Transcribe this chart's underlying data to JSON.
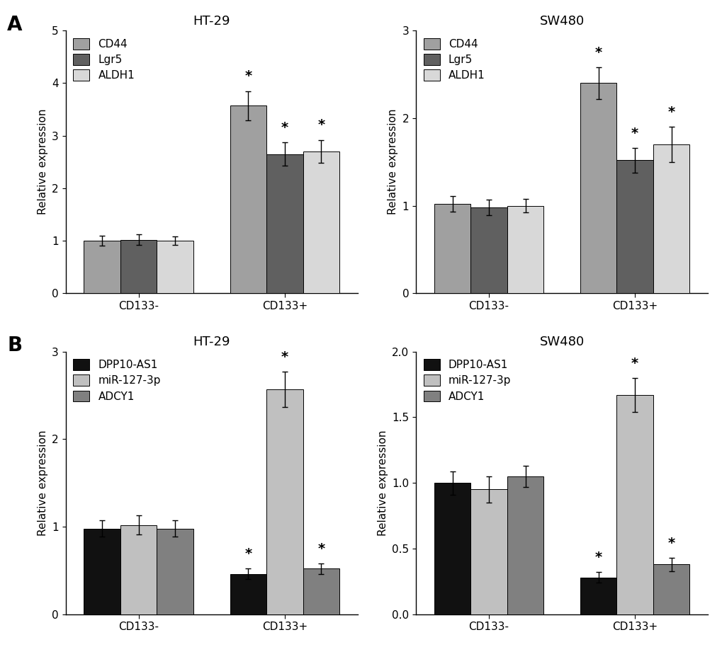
{
  "panel_A_HT29": {
    "title": "HT-29",
    "ylabel": "Relative expression",
    "ylim": [
      0,
      5
    ],
    "yticks": [
      0,
      1,
      2,
      3,
      4,
      5
    ],
    "groups": [
      "CD133-",
      "CD133+"
    ],
    "legend_labels": [
      "CD44",
      "Lgr5",
      "ALDH1"
    ],
    "colors": [
      "#a0a0a0",
      "#606060",
      "#d8d8d8"
    ],
    "values": [
      [
        1.0,
        1.02,
        1.0
      ],
      [
        3.57,
        2.65,
        2.7
      ]
    ],
    "errors": [
      [
        0.09,
        0.1,
        0.08
      ],
      [
        0.28,
        0.22,
        0.22
      ]
    ],
    "significance": [
      [
        false,
        false,
        false
      ],
      [
        true,
        true,
        true
      ]
    ]
  },
  "panel_A_SW480": {
    "title": "SW480",
    "ylabel": "Relative expression",
    "ylim": [
      0,
      3
    ],
    "yticks": [
      0,
      1,
      2,
      3
    ],
    "groups": [
      "CD133-",
      "CD133+"
    ],
    "legend_labels": [
      "CD44",
      "Lgr5",
      "ALDH1"
    ],
    "colors": [
      "#a0a0a0",
      "#606060",
      "#d8d8d8"
    ],
    "values": [
      [
        1.02,
        0.98,
        1.0
      ],
      [
        2.4,
        1.52,
        1.7
      ]
    ],
    "errors": [
      [
        0.09,
        0.09,
        0.08
      ],
      [
        0.18,
        0.14,
        0.2
      ]
    ],
    "significance": [
      [
        false,
        false,
        false
      ],
      [
        true,
        true,
        true
      ]
    ]
  },
  "panel_B_HT29": {
    "title": "HT-29",
    "ylabel": "Relative expression",
    "ylim": [
      0,
      3
    ],
    "yticks": [
      0,
      1,
      2,
      3
    ],
    "groups": [
      "CD133-",
      "CD133+"
    ],
    "legend_labels": [
      "DPP10-AS1",
      "miR-127-3p",
      "ADCY1"
    ],
    "colors": [
      "#111111",
      "#c0c0c0",
      "#808080"
    ],
    "values": [
      [
        0.98,
        1.02,
        0.98
      ],
      [
        0.46,
        2.57,
        0.52
      ]
    ],
    "errors": [
      [
        0.09,
        0.11,
        0.09
      ],
      [
        0.06,
        0.2,
        0.06
      ]
    ],
    "significance": [
      [
        false,
        false,
        false
      ],
      [
        true,
        true,
        true
      ]
    ]
  },
  "panel_B_SW480": {
    "title": "SW480",
    "ylabel": "Relative expression",
    "ylim": [
      0,
      2.0
    ],
    "yticks": [
      0.0,
      0.5,
      1.0,
      1.5,
      2.0
    ],
    "groups": [
      "CD133-",
      "CD133+"
    ],
    "legend_labels": [
      "DPP10-AS1",
      "miR-127-3p",
      "ADCY1"
    ],
    "colors": [
      "#111111",
      "#c0c0c0",
      "#808080"
    ],
    "values": [
      [
        1.0,
        0.95,
        1.05
      ],
      [
        0.28,
        1.67,
        0.38
      ]
    ],
    "errors": [
      [
        0.09,
        0.1,
        0.08
      ],
      [
        0.04,
        0.13,
        0.05
      ]
    ],
    "significance": [
      [
        false,
        false,
        false
      ],
      [
        true,
        true,
        true
      ]
    ]
  },
  "bar_width": 0.2,
  "fontsize_title": 13,
  "fontsize_label": 11,
  "fontsize_tick": 11,
  "fontsize_legend": 11,
  "fontsize_star": 14,
  "label_A": "A",
  "label_B": "B"
}
